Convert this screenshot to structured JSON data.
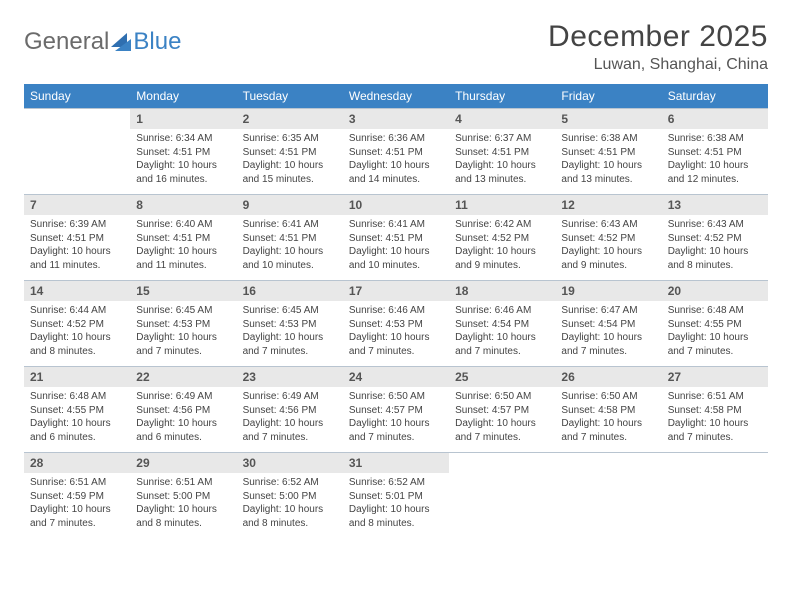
{
  "brand": {
    "name_part1": "General",
    "name_part2": "Blue",
    "text_color_1": "#6b6b6b",
    "text_color_2": "#3b82c4",
    "mark_color": "#2f6fb0",
    "fontsize": 24
  },
  "title": {
    "month": "December 2025",
    "location": "Luwan, Shanghai, China",
    "month_fontsize": 30,
    "location_fontsize": 16,
    "color": "#444444"
  },
  "calendar": {
    "type": "table",
    "header_bg": "#3b82c4",
    "header_fg": "#ffffff",
    "daynum_bg": "#e8e8e8",
    "daynum_fg": "#555555",
    "rule_color": "#b8c4d0",
    "background_color": "#ffffff",
    "body_fg": "#444444",
    "header_fontsize": 12,
    "daynum_fontsize": 12,
    "body_fontsize": 10,
    "columns": [
      "Sunday",
      "Monday",
      "Tuesday",
      "Wednesday",
      "Thursday",
      "Friday",
      "Saturday"
    ],
    "weeks": [
      [
        {
          "n": "",
          "sr": "",
          "ss": "",
          "dl": ""
        },
        {
          "n": "1",
          "sr": "Sunrise: 6:34 AM",
          "ss": "Sunset: 4:51 PM",
          "dl": "Daylight: 10 hours and 16 minutes."
        },
        {
          "n": "2",
          "sr": "Sunrise: 6:35 AM",
          "ss": "Sunset: 4:51 PM",
          "dl": "Daylight: 10 hours and 15 minutes."
        },
        {
          "n": "3",
          "sr": "Sunrise: 6:36 AM",
          "ss": "Sunset: 4:51 PM",
          "dl": "Daylight: 10 hours and 14 minutes."
        },
        {
          "n": "4",
          "sr": "Sunrise: 6:37 AM",
          "ss": "Sunset: 4:51 PM",
          "dl": "Daylight: 10 hours and 13 minutes."
        },
        {
          "n": "5",
          "sr": "Sunrise: 6:38 AM",
          "ss": "Sunset: 4:51 PM",
          "dl": "Daylight: 10 hours and 13 minutes."
        },
        {
          "n": "6",
          "sr": "Sunrise: 6:38 AM",
          "ss": "Sunset: 4:51 PM",
          "dl": "Daylight: 10 hours and 12 minutes."
        }
      ],
      [
        {
          "n": "7",
          "sr": "Sunrise: 6:39 AM",
          "ss": "Sunset: 4:51 PM",
          "dl": "Daylight: 10 hours and 11 minutes."
        },
        {
          "n": "8",
          "sr": "Sunrise: 6:40 AM",
          "ss": "Sunset: 4:51 PM",
          "dl": "Daylight: 10 hours and 11 minutes."
        },
        {
          "n": "9",
          "sr": "Sunrise: 6:41 AM",
          "ss": "Sunset: 4:51 PM",
          "dl": "Daylight: 10 hours and 10 minutes."
        },
        {
          "n": "10",
          "sr": "Sunrise: 6:41 AM",
          "ss": "Sunset: 4:51 PM",
          "dl": "Daylight: 10 hours and 10 minutes."
        },
        {
          "n": "11",
          "sr": "Sunrise: 6:42 AM",
          "ss": "Sunset: 4:52 PM",
          "dl": "Daylight: 10 hours and 9 minutes."
        },
        {
          "n": "12",
          "sr": "Sunrise: 6:43 AM",
          "ss": "Sunset: 4:52 PM",
          "dl": "Daylight: 10 hours and 9 minutes."
        },
        {
          "n": "13",
          "sr": "Sunrise: 6:43 AM",
          "ss": "Sunset: 4:52 PM",
          "dl": "Daylight: 10 hours and 8 minutes."
        }
      ],
      [
        {
          "n": "14",
          "sr": "Sunrise: 6:44 AM",
          "ss": "Sunset: 4:52 PM",
          "dl": "Daylight: 10 hours and 8 minutes."
        },
        {
          "n": "15",
          "sr": "Sunrise: 6:45 AM",
          "ss": "Sunset: 4:53 PM",
          "dl": "Daylight: 10 hours and 7 minutes."
        },
        {
          "n": "16",
          "sr": "Sunrise: 6:45 AM",
          "ss": "Sunset: 4:53 PM",
          "dl": "Daylight: 10 hours and 7 minutes."
        },
        {
          "n": "17",
          "sr": "Sunrise: 6:46 AM",
          "ss": "Sunset: 4:53 PM",
          "dl": "Daylight: 10 hours and 7 minutes."
        },
        {
          "n": "18",
          "sr": "Sunrise: 6:46 AM",
          "ss": "Sunset: 4:54 PM",
          "dl": "Daylight: 10 hours and 7 minutes."
        },
        {
          "n": "19",
          "sr": "Sunrise: 6:47 AM",
          "ss": "Sunset: 4:54 PM",
          "dl": "Daylight: 10 hours and 7 minutes."
        },
        {
          "n": "20",
          "sr": "Sunrise: 6:48 AM",
          "ss": "Sunset: 4:55 PM",
          "dl": "Daylight: 10 hours and 7 minutes."
        }
      ],
      [
        {
          "n": "21",
          "sr": "Sunrise: 6:48 AM",
          "ss": "Sunset: 4:55 PM",
          "dl": "Daylight: 10 hours and 6 minutes."
        },
        {
          "n": "22",
          "sr": "Sunrise: 6:49 AM",
          "ss": "Sunset: 4:56 PM",
          "dl": "Daylight: 10 hours and 6 minutes."
        },
        {
          "n": "23",
          "sr": "Sunrise: 6:49 AM",
          "ss": "Sunset: 4:56 PM",
          "dl": "Daylight: 10 hours and 7 minutes."
        },
        {
          "n": "24",
          "sr": "Sunrise: 6:50 AM",
          "ss": "Sunset: 4:57 PM",
          "dl": "Daylight: 10 hours and 7 minutes."
        },
        {
          "n": "25",
          "sr": "Sunrise: 6:50 AM",
          "ss": "Sunset: 4:57 PM",
          "dl": "Daylight: 10 hours and 7 minutes."
        },
        {
          "n": "26",
          "sr": "Sunrise: 6:50 AM",
          "ss": "Sunset: 4:58 PM",
          "dl": "Daylight: 10 hours and 7 minutes."
        },
        {
          "n": "27",
          "sr": "Sunrise: 6:51 AM",
          "ss": "Sunset: 4:58 PM",
          "dl": "Daylight: 10 hours and 7 minutes."
        }
      ],
      [
        {
          "n": "28",
          "sr": "Sunrise: 6:51 AM",
          "ss": "Sunset: 4:59 PM",
          "dl": "Daylight: 10 hours and 7 minutes."
        },
        {
          "n": "29",
          "sr": "Sunrise: 6:51 AM",
          "ss": "Sunset: 5:00 PM",
          "dl": "Daylight: 10 hours and 8 minutes."
        },
        {
          "n": "30",
          "sr": "Sunrise: 6:52 AM",
          "ss": "Sunset: 5:00 PM",
          "dl": "Daylight: 10 hours and 8 minutes."
        },
        {
          "n": "31",
          "sr": "Sunrise: 6:52 AM",
          "ss": "Sunset: 5:01 PM",
          "dl": "Daylight: 10 hours and 8 minutes."
        },
        {
          "n": "",
          "sr": "",
          "ss": "",
          "dl": ""
        },
        {
          "n": "",
          "sr": "",
          "ss": "",
          "dl": ""
        },
        {
          "n": "",
          "sr": "",
          "ss": "",
          "dl": ""
        }
      ]
    ]
  }
}
